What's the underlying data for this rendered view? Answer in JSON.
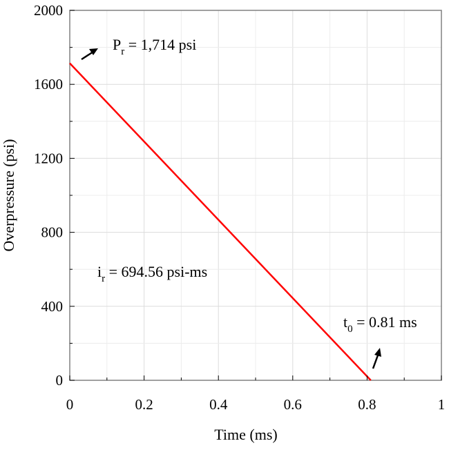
{
  "chart_data": {
    "type": "line",
    "title": "",
    "xlabel": "Time (ms)",
    "ylabel": "Overpressure (psi)",
    "xlim": [
      0,
      1
    ],
    "ylim": [
      0,
      2000
    ],
    "xticks": [
      0,
      0.2,
      0.4,
      0.6,
      0.8,
      1
    ],
    "yticks": [
      0,
      400,
      800,
      1200,
      1600,
      2000
    ],
    "xtick_labels": [
      "0",
      "0.2",
      "0.4",
      "0.6",
      "0.8",
      "1"
    ],
    "ytick_labels": [
      "0",
      "400",
      "800",
      "1200",
      "1600",
      "2000"
    ],
    "grid": true,
    "series": [
      {
        "x": [
          0,
          0.81
        ],
        "y": [
          1714,
          0
        ],
        "color": "#ff0000"
      }
    ],
    "annotations": {
      "peak": {
        "symbol": "P",
        "subscript": "r",
        "value": " = 1,714 psi"
      },
      "impulse": {
        "symbol": "i",
        "subscript": "r",
        "value": " = 694.56 psi-ms"
      },
      "duration": {
        "symbol": "t",
        "subscript": "0",
        "value": " = 0.81 ms"
      }
    }
  }
}
